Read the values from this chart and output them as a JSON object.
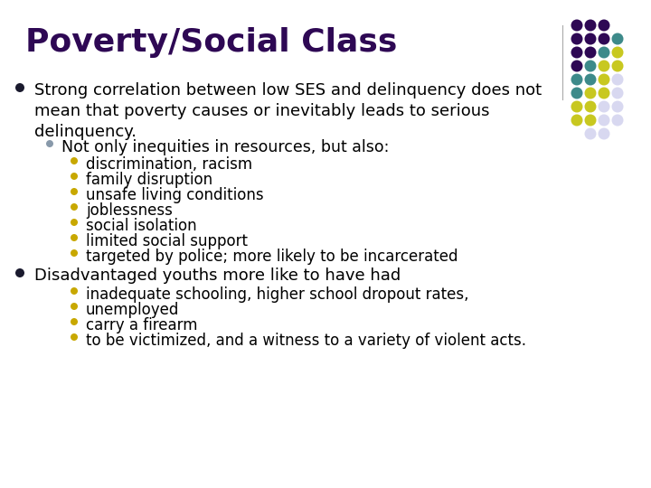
{
  "title": "Poverty/Social Class",
  "title_color": "#2e0854",
  "title_fontsize": 26,
  "bg_color": "#ffffff",
  "text_color": "#000000",
  "body_fontsize": 13,
  "sub_fontsize": 12.5,
  "subsub_fontsize": 12,
  "bullet_l1_color": "#1a1a2e",
  "bullet_l2_color": "#8899aa",
  "bullet_l3_color": "#c8a800",
  "dot_rows": [
    [
      "#2e0854",
      "#2e0854",
      "#2e0854",
      ""
    ],
    [
      "#2e0854",
      "#2e0854",
      "#2e0854",
      "#3d8a8a"
    ],
    [
      "#2e0854",
      "#2e0854",
      "#3d8a8a",
      "#c8c820"
    ],
    [
      "#2e0854",
      "#3d8a8a",
      "#c8c820",
      "#c8c820"
    ],
    [
      "#3d8a8a",
      "#3d8a8a",
      "#c8c820",
      "#d8d8f0"
    ],
    [
      "#3d8a8a",
      "#c8c820",
      "#c8c820",
      "#d8d8f0"
    ],
    [
      "#c8c820",
      "#c8c820",
      "#d8d8f0",
      "#d8d8f0"
    ],
    [
      "#c8c820",
      "#c8c820",
      "#d8d8f0",
      "#d8d8f0"
    ],
    [
      "",
      "#d8d8f0",
      "#d8d8f0",
      ""
    ]
  ],
  "l1_item1": "Strong correlation between low SES and delinquency does not\nmean that poverty causes or inevitably leads to serious\ndelinquency.",
  "l2_item1": "Not only inequities in resources, but also:",
  "l3_items": [
    "discrimination, racism",
    "family disruption",
    "unsafe living conditions",
    "joblessness",
    "social isolation",
    "limited social support",
    "targeted by police; more likely to be incarcerated"
  ],
  "l1_item2": "Disadvantaged youths more like to have had",
  "l3_items2": [
    "inadequate schooling, higher school dropout rates,",
    "unemployed",
    "carry a firearm",
    "to be victimized, and a witness to a variety of violent acts."
  ]
}
